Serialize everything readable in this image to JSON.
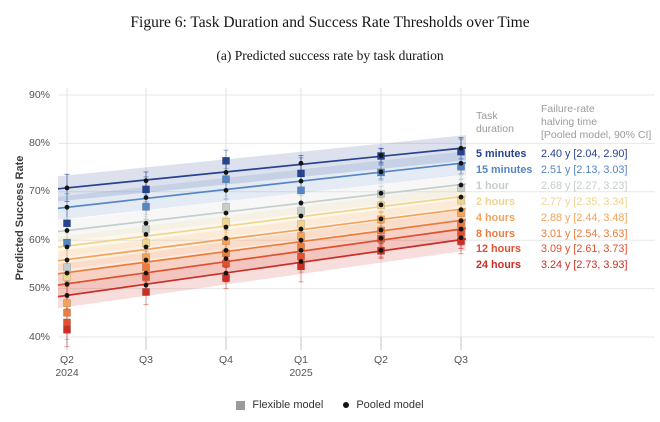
{
  "figure": {
    "title": "Figure 6: Task Duration and Success Rate Thresholds over Time",
    "subtitle": "(a) Predicted success rate by task duration"
  },
  "chart_data": {
    "type": "line",
    "title": "Predicted success rate by task duration",
    "ylabel": "Predicted Success Rate",
    "xlabel": "",
    "ylim": [
      38,
      92
    ],
    "y_ticks": [
      40,
      50,
      60,
      70,
      80,
      90
    ],
    "y_tick_suffix": "%",
    "grid": true,
    "categories": [
      "Q2 2024",
      "Q3 2024",
      "Q4 2024",
      "Q1 2025",
      "Q2 2025",
      "Q3 2025"
    ],
    "x_tick_labels": [
      "Q2",
      "Q3",
      "Q4",
      "Q1",
      "Q2",
      "Q3"
    ],
    "x_year_labels": [
      {
        "index": 0,
        "label": "2024"
      },
      {
        "index": 3,
        "label": "2025"
      }
    ],
    "legend": {
      "col1_header": "Task\nduration",
      "col2_header": "Failure-rate\nhalving time\n[Pooled model, 90% CI]"
    },
    "series": [
      {
        "name": "5 minutes",
        "color": "#26438e",
        "halving_time": "2.40 y [2.04, 2.90]",
        "trend_pct": [
          70.8,
          79.0
        ],
        "ci_half_pct": 2.6,
        "pooled": [
          70.8,
          72.3,
          74.0,
          75.9,
          77.5,
          79.0
        ],
        "flexible": [
          63.5,
          70.5,
          76.4,
          73.8,
          77.4,
          78.3
        ]
      },
      {
        "name": "15 minutes",
        "color": "#5585c2",
        "halving_time": "2.51 y [2.13, 3.03]",
        "trend_pct": [
          66.8,
          75.9
        ],
        "ci_half_pct": 2.4,
        "pooled": [
          66.8,
          68.8,
          70.3,
          72.2,
          74.1,
          75.9
        ],
        "flexible": [
          59.5,
          66.9,
          72.6,
          70.3,
          74.0,
          75.2
        ]
      },
      {
        "name": "1 hour",
        "color": "#c5cec9",
        "halving_time": "2.68 y [2.27, 3.23]",
        "trend_pct": [
          62.0,
          71.5
        ],
        "ci_half_pct": 2.2,
        "pooled": [
          62.0,
          63.5,
          65.6,
          67.7,
          69.7,
          71.4
        ],
        "flexible": [
          54.4,
          62.3,
          66.9,
          66.0,
          69.6,
          70.8
        ]
      },
      {
        "name": "2 hours",
        "color": "#f0d491",
        "halving_time": "2.77 y [2.35, 3.34]",
        "trend_pct": [
          58.8,
          69.0
        ],
        "ci_half_pct": 2.1,
        "pooled": [
          58.6,
          61.2,
          62.7,
          65.0,
          67.3,
          68.9
        ],
        "flexible": [
          52.4,
          59.4,
          63.8,
          63.3,
          67.2,
          68.2
        ]
      },
      {
        "name": "4 hours",
        "color": "#f2a35a",
        "halving_time": "2.88 y [2.44, 3.48]",
        "trend_pct": [
          56.0,
          66.4
        ],
        "ci_half_pct": 2.0,
        "pooled": [
          55.9,
          58.6,
          60.4,
          62.3,
          64.4,
          66.3
        ],
        "flexible": [
          47.0,
          56.5,
          59.8,
          60.8,
          64.3,
          65.6
        ]
      },
      {
        "name": "8 hours",
        "color": "#ea7c3c",
        "halving_time": "3.01 y [2.54, 3.63]",
        "trend_pct": [
          53.3,
          64.1
        ],
        "ci_half_pct": 2.0,
        "pooled": [
          53.2,
          55.9,
          57.9,
          60.0,
          62.1,
          64.0
        ],
        "flexible": [
          45.0,
          54.4,
          57.3,
          58.6,
          62.0,
          63.3
        ]
      },
      {
        "name": "12 hours",
        "color": "#e04f2e",
        "halving_time": "3.09 y [2.61, 3.73]",
        "trend_pct": [
          51.0,
          62.3
        ],
        "ci_half_pct": 2.1,
        "pooled": [
          50.9,
          53.2,
          56.2,
          57.9,
          60.4,
          62.3
        ],
        "flexible": [
          43.0,
          52.4,
          55.2,
          56.6,
          60.3,
          61.5
        ]
      },
      {
        "name": "24 hours",
        "color": "#cc2d24",
        "halving_time": "3.24 y [2.73, 3.93]",
        "trend_pct": [
          48.6,
          60.1
        ],
        "ci_half_pct": 2.4,
        "pooled": [
          48.6,
          50.7,
          53.2,
          55.6,
          57.9,
          60.5
        ],
        "flexible": [
          41.5,
          49.3,
          52.2,
          54.6,
          57.8,
          59.8
        ]
      }
    ],
    "error_half_pooled": [
      2.8,
      1.8,
      1.8,
      1.6,
      1.4,
      2.2
    ],
    "error_half_flexible": [
      3.5,
      2.6,
      2.2,
      3.2,
      1.6,
      2.6
    ],
    "models_legend": [
      {
        "label": "Flexible model",
        "marker": "square",
        "color": "#9a9a9a"
      },
      {
        "label": "Pooled model",
        "marker": "dot",
        "color": "#141414"
      }
    ],
    "colors": {
      "pooled_point": "#141414",
      "grid_horizontal": "#e7e7e7",
      "grid_vertical": "#e3e3e3",
      "axis_tick": "#c4c4c4"
    }
  }
}
